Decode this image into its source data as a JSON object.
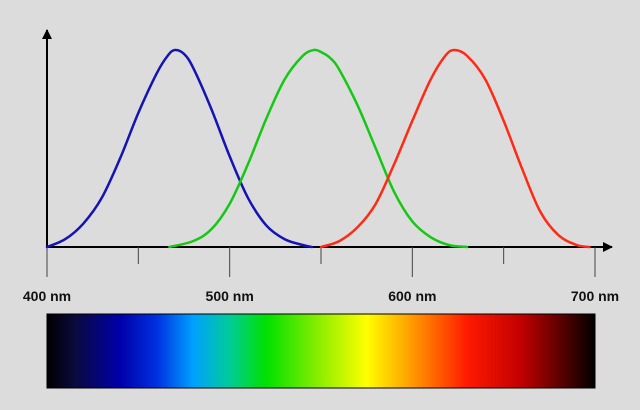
{
  "chart_data": {
    "type": "line",
    "title": "",
    "xlabel": "",
    "ylabel": "",
    "x_unit": "nm",
    "xlim": [
      400,
      700
    ],
    "ylim": [
      0,
      1
    ],
    "grid": false,
    "x_major_ticks": [
      400,
      500,
      600,
      700
    ],
    "x_minor_ticks": [
      450,
      550,
      650
    ],
    "tick_labels": [
      "400 nm",
      "500 nm",
      "600 nm",
      "700 nm"
    ],
    "series": [
      {
        "color": "#1414b4",
        "x": [
          400,
          410,
          420,
          430,
          440,
          450,
          460,
          466,
          470,
          475,
          480,
          490,
          500,
          510,
          520,
          530,
          540,
          545
        ],
        "y": [
          0.0,
          0.04,
          0.12,
          0.25,
          0.45,
          0.68,
          0.88,
          0.97,
          1.0,
          0.98,
          0.91,
          0.7,
          0.46,
          0.25,
          0.11,
          0.04,
          0.01,
          0.0
        ]
      },
      {
        "color": "#14c814",
        "x": [
          467,
          480,
          490,
          500,
          510,
          520,
          530,
          540,
          546,
          550,
          555,
          560,
          570,
          580,
          590,
          600,
          610,
          620,
          630
        ],
        "y": [
          0.0,
          0.03,
          0.09,
          0.22,
          0.42,
          0.65,
          0.85,
          0.97,
          1.0,
          0.99,
          0.96,
          0.9,
          0.72,
          0.5,
          0.28,
          0.13,
          0.05,
          0.01,
          0.0
        ]
      },
      {
        "color": "#ff2a14",
        "x": [
          550,
          560,
          570,
          580,
          590,
          600,
          610,
          618,
          623,
          630,
          640,
          650,
          660,
          670,
          680,
          690,
          697
        ],
        "y": [
          0.0,
          0.03,
          0.1,
          0.22,
          0.42,
          0.64,
          0.85,
          0.97,
          1.0,
          0.97,
          0.85,
          0.64,
          0.4,
          0.18,
          0.06,
          0.01,
          0.0
        ]
      }
    ],
    "spectrum_stops": [
      {
        "wavelength": 400,
        "color": "#000000"
      },
      {
        "wavelength": 415,
        "color": "#0a0a3c"
      },
      {
        "wavelength": 440,
        "color": "#0000aa"
      },
      {
        "wavelength": 460,
        "color": "#0030e0"
      },
      {
        "wavelength": 480,
        "color": "#00a0ff"
      },
      {
        "wavelength": 500,
        "color": "#00cc99"
      },
      {
        "wavelength": 520,
        "color": "#00e000"
      },
      {
        "wavelength": 550,
        "color": "#90ee00"
      },
      {
        "wavelength": 575,
        "color": "#ffff00"
      },
      {
        "wavelength": 600,
        "color": "#ff9900"
      },
      {
        "wavelength": 630,
        "color": "#ff1a00"
      },
      {
        "wavelength": 660,
        "color": "#c00000"
      },
      {
        "wavelength": 690,
        "color": "#300000"
      },
      {
        "wavelength": 700,
        "color": "#000000"
      }
    ]
  }
}
